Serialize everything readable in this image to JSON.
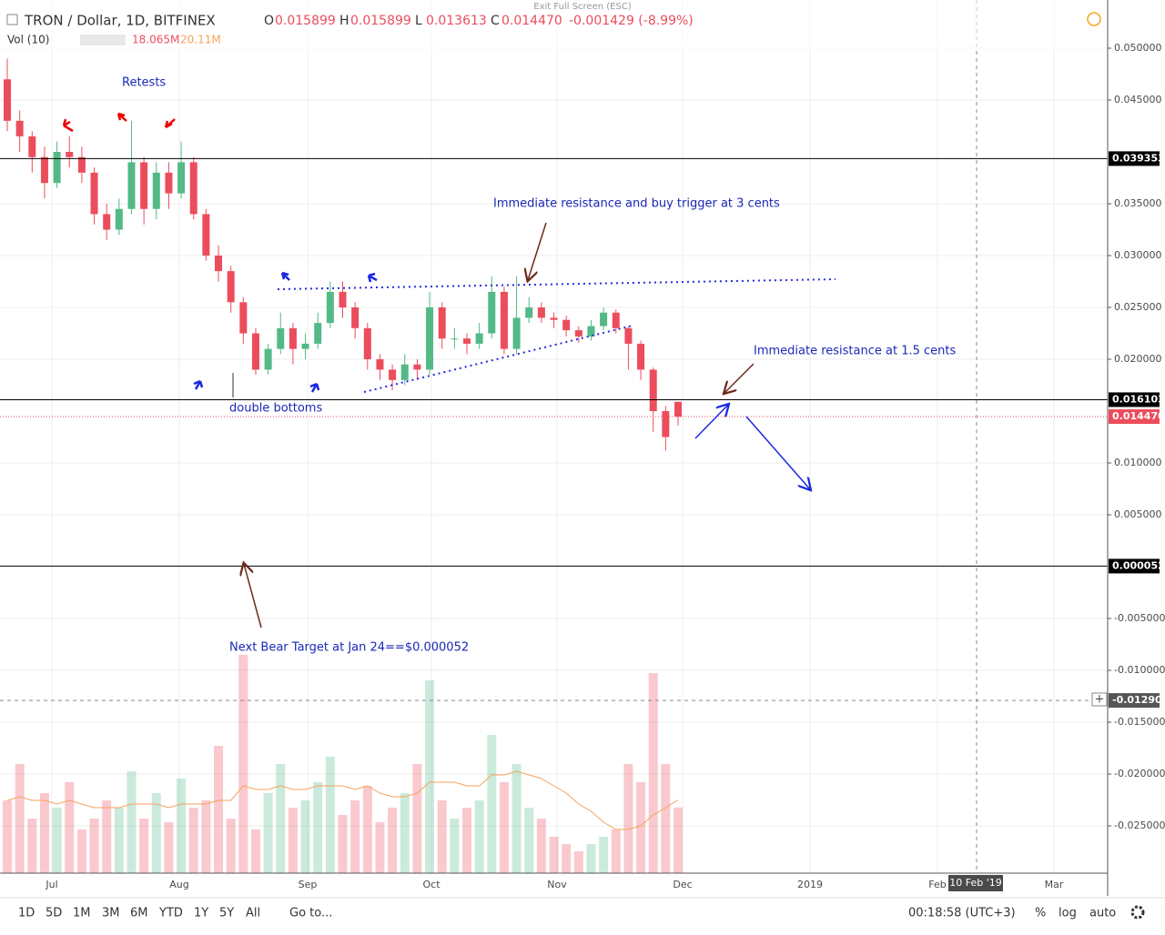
{
  "header": {
    "title": "TRON / Dollar, 1D, BITFINEX",
    "fullscreen": "Exit Full Screen (ESC)",
    "ohlc": [
      {
        "label": "O",
        "value": "0.015899"
      },
      {
        "label": "H",
        "value": "0.015899"
      },
      {
        "label": "L",
        "value": "0.013613"
      },
      {
        "label": "C",
        "value": "0.014470"
      }
    ],
    "change": "-0.001429 (-8.99%)",
    "volume_title": "Vol (10)",
    "volume_value": "18.065M",
    "volume_ma": "20.11M"
  },
  "chart_data": {
    "type": "candlestick",
    "open": [
      0.047,
      0.043,
      0.0415,
      0.0395,
      0.037,
      0.04,
      0.0395,
      0.038,
      0.034,
      0.0325,
      0.0345,
      0.039,
      0.0345,
      0.038,
      0.036,
      0.039,
      0.034,
      0.03,
      0.0285,
      0.0255,
      0.0225,
      0.019,
      0.021,
      0.023,
      0.021,
      0.0215,
      0.0235,
      0.0265,
      0.025,
      0.023,
      0.02,
      0.019,
      0.018,
      0.0195,
      0.019,
      0.025,
      0.022,
      0.022,
      0.0215,
      0.0225,
      0.0265,
      0.021,
      0.024,
      0.025,
      0.024,
      0.0238,
      0.0228,
      0.0222,
      0.0232,
      0.0245,
      0.023,
      0.0215,
      0.019,
      0.015,
      0.015899
    ],
    "high": [
      0.049,
      0.044,
      0.042,
      0.0405,
      0.041,
      0.0415,
      0.0405,
      0.0385,
      0.035,
      0.0355,
      0.043,
      0.0395,
      0.039,
      0.039,
      0.041,
      0.0395,
      0.0345,
      0.031,
      0.029,
      0.026,
      0.023,
      0.0215,
      0.0245,
      0.0235,
      0.0225,
      0.0245,
      0.0275,
      0.0275,
      0.0255,
      0.0235,
      0.0205,
      0.0195,
      0.0205,
      0.02,
      0.0265,
      0.0255,
      0.023,
      0.0225,
      0.0235,
      0.028,
      0.027,
      0.028,
      0.026,
      0.0255,
      0.0245,
      0.0242,
      0.0232,
      0.0238,
      0.025,
      0.0248,
      0.0232,
      0.0218,
      0.0192,
      0.0155,
      0.015899
    ],
    "low": [
      0.042,
      0.04,
      0.038,
      0.0355,
      0.0365,
      0.0385,
      0.037,
      0.033,
      0.0315,
      0.032,
      0.034,
      0.033,
      0.0335,
      0.0345,
      0.0355,
      0.0335,
      0.0295,
      0.0275,
      0.0245,
      0.0215,
      0.0185,
      0.0185,
      0.0205,
      0.0195,
      0.02,
      0.021,
      0.023,
      0.024,
      0.022,
      0.019,
      0.018,
      0.017,
      0.0175,
      0.018,
      0.0185,
      0.021,
      0.021,
      0.0205,
      0.021,
      0.022,
      0.0205,
      0.0205,
      0.0235,
      0.0235,
      0.023,
      0.0222,
      0.0216,
      0.0218,
      0.0228,
      0.0225,
      0.019,
      0.018,
      0.013,
      0.0112,
      0.013613
    ],
    "close": [
      0.043,
      0.0415,
      0.0395,
      0.037,
      0.04,
      0.0395,
      0.038,
      0.034,
      0.0325,
      0.0345,
      0.039,
      0.0345,
      0.038,
      0.036,
      0.039,
      0.034,
      0.03,
      0.0285,
      0.0255,
      0.0225,
      0.019,
      0.021,
      0.023,
      0.021,
      0.0215,
      0.0235,
      0.0265,
      0.025,
      0.023,
      0.02,
      0.019,
      0.018,
      0.0195,
      0.019,
      0.025,
      0.022,
      0.022,
      0.0215,
      0.0225,
      0.0265,
      0.021,
      0.024,
      0.025,
      0.024,
      0.0238,
      0.0228,
      0.0222,
      0.0232,
      0.0245,
      0.023,
      0.0215,
      0.019,
      0.015,
      0.0125,
      0.01447
    ],
    "volume": [
      20,
      30,
      15,
      22,
      18,
      25,
      12,
      15,
      20,
      18,
      28,
      15,
      22,
      14,
      26,
      18,
      20,
      35,
      15,
      60,
      12,
      22,
      30,
      18,
      20,
      25,
      32,
      16,
      20,
      24,
      14,
      18,
      22,
      30,
      53,
      20,
      15,
      18,
      20,
      38,
      25,
      30,
      18,
      15,
      10,
      8,
      6,
      8,
      10,
      12,
      30,
      25,
      55,
      30,
      18.065
    ],
    "volume_ma": [
      20,
      21,
      20,
      20,
      19,
      20,
      19,
      18,
      18,
      18,
      19,
      19,
      19,
      18,
      19,
      19,
      19,
      20,
      20,
      24,
      23,
      23,
      24,
      23,
      23,
      24,
      24,
      24,
      23,
      24,
      22,
      21,
      21,
      22,
      25,
      25,
      25,
      24,
      24,
      27,
      27,
      28,
      27,
      26,
      24,
      22,
      19,
      17,
      14,
      12,
      12,
      13,
      16,
      18,
      20.11
    ],
    "up_color": "#53b987",
    "down_color": "#eb4d5c",
    "ma_color": "#f7a35c",
    "ylim": [
      -0.02956,
      0.05465
    ],
    "yticks": [
      {
        "value": 0.05,
        "label": "0.050000"
      },
      {
        "value": 0.045,
        "label": "0.045000"
      },
      {
        "value": 0.035,
        "label": "0.035000"
      },
      {
        "value": 0.03,
        "label": "0.030000"
      },
      {
        "value": 0.025,
        "label": "0.025000"
      },
      {
        "value": 0.02,
        "label": "0.020000"
      },
      {
        "value": 0.01,
        "label": "0.010000"
      },
      {
        "value": 0.005,
        "label": "0.005000"
      },
      {
        "value": -0.005,
        "label": "-0.005000"
      },
      {
        "value": -0.01,
        "label": "-0.010000"
      },
      {
        "value": -0.015,
        "label": "-0.015000"
      },
      {
        "value": -0.02,
        "label": "-0.020000"
      },
      {
        "value": -0.025,
        "label": "-0.025000"
      }
    ],
    "levels": [
      {
        "value": 0.039353,
        "label": "0.039353",
        "color": "#000000"
      },
      {
        "value": 0.016103,
        "label": "0.016103",
        "color": "#000000"
      },
      {
        "value": 0.01447,
        "label": "0.014470",
        "color": "#eb4d5c"
      },
      {
        "value": 5.2e-05,
        "label": "0.000052",
        "color": "#000000"
      },
      {
        "value": -0.012902,
        "label": "-0.012902",
        "color": "#555555"
      }
    ],
    "xticks": [
      "Jul",
      "Aug",
      "Sep",
      "Oct",
      "Nov",
      "Dec",
      "2019",
      "Feb",
      "Mar"
    ],
    "crosshair_label": "10 Feb '19",
    "annotations": [
      "Retests",
      "Immediate resistance and buy trigger at 3 cents",
      "Immediate resistance at 1.5 cents",
      "double bottoms",
      "Next Bear Target at Jan 24==$0.000052"
    ]
  },
  "toolbar": {
    "ranges": [
      "1D",
      "5D",
      "1M",
      "3M",
      "6M",
      "YTD",
      "1Y",
      "5Y",
      "All"
    ],
    "goto": "Go to...",
    "clock": "00:18:58 (UTC+3)",
    "percent": "%",
    "log": "log",
    "auto": "auto"
  }
}
